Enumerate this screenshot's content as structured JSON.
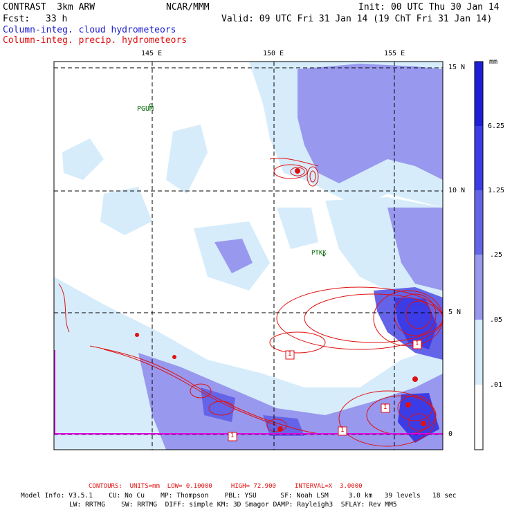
{
  "header": {
    "model": "CONTRAST  3km ARW",
    "org": "NCAR/MMM",
    "init": "Init: 00 UTC Thu 30 Jan 14",
    "fcst_label": "Fcst:",
    "fcst_value": "33 h",
    "valid": "Valid: 09 UTC Fri 31 Jan 14 (19 ChT Fri 31 Jan 14)",
    "field1": "Column-integ. cloud hydrometeors",
    "field2": "Column-integ. precip. hydrometeors"
  },
  "map": {
    "lon_labels": [
      "145 E",
      "150 E",
      "155 E"
    ],
    "lat_labels": [
      "15 N",
      "10 N",
      "5 N",
      "0"
    ],
    "stations": [
      "PGUM",
      "PTKK"
    ],
    "contour_labels": [
      "1",
      "1",
      "1",
      "1",
      "1"
    ]
  },
  "colorbar": {
    "unit": "mm",
    "labels": [
      "6.25",
      "1.25",
      ".25",
      ".05",
      ".01"
    ],
    "colors": [
      "#1e1ed8",
      "#3c3ce6",
      "#6464e8",
      "#9898ee",
      "#d6ecfb",
      "#ffffff"
    ]
  },
  "footer": {
    "contours": "CONTOURS:  UNITS=mm  LOW= 0.10000     HIGH= 72.900     INTERVAL=X  3.0000",
    "info1": "Model Info: V3.5.1    CU: No Cu    MP: Thompson    PBL: YSU      SF: Noah LSM     3.0 km   39 levels   18 sec",
    "info2": "LW: RRTMG    SW: RRTMG  DIFF: simple KM: 3D Smagor DAMP: Rayleigh3  SFLAY: Rev MM5"
  },
  "colors": {
    "cloud_light": "#d6ecfb",
    "cloud_mid": "#9898ee",
    "cloud_dark": "#3c3ce6",
    "precip": "#e01010",
    "boundary": "#e000e0",
    "station": "#006600"
  }
}
